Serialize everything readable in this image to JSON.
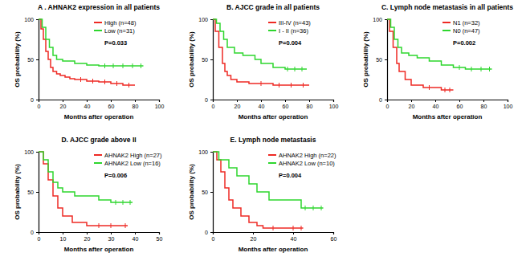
{
  "chart_data": [
    {
      "type": "step",
      "title": "A . AHNAK2 expression in all patients",
      "x_label": "Months after operation",
      "y_label": "OS probability (%)",
      "xlim": [
        0,
        100
      ],
      "xticks": [
        0,
        20,
        40,
        60,
        80,
        100
      ],
      "ylim": [
        0,
        100
      ],
      "yticks": [
        0,
        50,
        100
      ],
      "legend": "upper-right",
      "annotation": "P=0.033",
      "series": [
        {
          "name": "High (n=48)",
          "color": "#ee2a24",
          "x": [
            0,
            2,
            4,
            6,
            8,
            10,
            12,
            15,
            18,
            22,
            26,
            30,
            40,
            50,
            60,
            70,
            80
          ],
          "values": [
            100,
            88,
            75,
            60,
            50,
            40,
            35,
            32,
            30,
            28,
            26,
            25,
            23,
            22,
            20,
            18,
            18
          ],
          "censor_x": [
            35,
            45,
            55,
            65,
            75
          ],
          "censor_values": [
            25,
            23,
            22,
            20,
            18
          ]
        },
        {
          "name": "Low (n=31)",
          "color": "#2ed62e",
          "x": [
            0,
            3,
            6,
            9,
            12,
            15,
            20,
            30,
            40,
            50,
            87
          ],
          "values": [
            100,
            90,
            75,
            65,
            55,
            50,
            48,
            45,
            43,
            42,
            42
          ],
          "censor_x": [
            55,
            62,
            70,
            78,
            85
          ],
          "censor_values": [
            42,
            42,
            42,
            42,
            42
          ]
        }
      ]
    },
    {
      "type": "step",
      "title": "B. AJCC grade in all patients",
      "x_label": "Months after operation",
      "y_label": "OS probability (%)",
      "xlim": [
        0,
        100
      ],
      "xticks": [
        0,
        20,
        40,
        60,
        80,
        100
      ],
      "ylim": [
        0,
        100
      ],
      "yticks": [
        0,
        50,
        100
      ],
      "legend": "upper-right",
      "annotation": "P=0.004",
      "series": [
        {
          "name": "III-IV (n=43)",
          "color": "#ee2a24",
          "x": [
            0,
            2,
            5,
            8,
            10,
            12,
            15,
            20,
            30,
            50,
            80
          ],
          "values": [
            100,
            85,
            65,
            45,
            35,
            30,
            25,
            22,
            20,
            18,
            18
          ],
          "censor_x": [
            40,
            55,
            65,
            75
          ],
          "censor_values": [
            20,
            18,
            18,
            18
          ]
        },
        {
          "name": "I - II (n=36)",
          "color": "#2ed62e",
          "x": [
            0,
            3,
            6,
            9,
            12,
            18,
            25,
            35,
            40,
            50,
            60,
            78
          ],
          "values": [
            100,
            95,
            85,
            75,
            65,
            58,
            55,
            50,
            45,
            40,
            38,
            38
          ],
          "censor_x": [
            62,
            68,
            74
          ],
          "censor_values": [
            38,
            38,
            38
          ]
        }
      ]
    },
    {
      "type": "step",
      "title": "C. Lymph node metastasis in all patients",
      "x_label": "Months after operation",
      "y_label": "OS probability (%)",
      "xlim": [
        0,
        100
      ],
      "xticks": [
        0,
        20,
        40,
        60,
        80,
        100
      ],
      "ylim": [
        0,
        100
      ],
      "yticks": [
        0,
        50,
        100
      ],
      "legend": "upper-right",
      "annotation": "P=0.002",
      "series": [
        {
          "name": "N1 (n=32)",
          "color": "#ee2a24",
          "x": [
            0,
            2,
            5,
            8,
            10,
            15,
            20,
            30,
            45,
            55
          ],
          "values": [
            100,
            85,
            65,
            45,
            35,
            25,
            18,
            15,
            12,
            12
          ],
          "censor_x": [
            35,
            48,
            52
          ],
          "censor_values": [
            15,
            12,
            12
          ]
        },
        {
          "name": "N0 (n=47)",
          "color": "#2ed62e",
          "x": [
            0,
            3,
            6,
            9,
            12,
            18,
            25,
            35,
            45,
            55,
            65,
            87
          ],
          "values": [
            100,
            90,
            75,
            65,
            58,
            55,
            52,
            48,
            43,
            40,
            38,
            38
          ],
          "censor_x": [
            60,
            70,
            78,
            85
          ],
          "censor_values": [
            40,
            38,
            38,
            38
          ]
        }
      ]
    },
    {
      "type": "step",
      "title": "D. AJCC grade above II",
      "x_label": "Months after operation",
      "y_label": "OS probability (%)",
      "xlim": [
        0,
        50
      ],
      "xticks": [
        0,
        10,
        20,
        30,
        40,
        50
      ],
      "ylim": [
        0,
        100
      ],
      "yticks": [
        0,
        50,
        100
      ],
      "legend": "upper-right",
      "annotation": "P=0.006",
      "series": [
        {
          "name": "AHNAK2 High (n=27)",
          "color": "#ee2a24",
          "x": [
            0,
            2,
            4,
            6,
            8,
            10,
            14,
            20,
            37
          ],
          "values": [
            100,
            85,
            65,
            45,
            30,
            20,
            12,
            8,
            8
          ],
          "censor_x": [
            25,
            30,
            36
          ],
          "censor_values": [
            8,
            8,
            8
          ]
        },
        {
          "name": "AHNAK2 Low (n=16)",
          "color": "#2ed62e",
          "x": [
            0,
            2,
            4,
            6,
            8,
            10,
            15,
            25,
            30,
            39
          ],
          "values": [
            100,
            90,
            75,
            62,
            55,
            50,
            45,
            40,
            37,
            37
          ],
          "censor_x": [
            32,
            35,
            38
          ],
          "censor_values": [
            37,
            37,
            37
          ]
        }
      ]
    },
    {
      "type": "step",
      "title": "E. Lymph node metastasis",
      "x_label": "Months after operation",
      "y_label": "OS probability (%)",
      "xlim": [
        0,
        60
      ],
      "xticks": [
        0,
        20,
        40,
        60
      ],
      "ylim": [
        0,
        100
      ],
      "yticks": [
        0,
        50,
        100
      ],
      "legend": "upper-right",
      "annotation": "P=0.004",
      "series": [
        {
          "name": "AHNAK2 High (n=22)",
          "color": "#ee2a24",
          "x": [
            0,
            2,
            4,
            6,
            8,
            10,
            14,
            18,
            22,
            25,
            45
          ],
          "values": [
            100,
            90,
            75,
            55,
            40,
            30,
            20,
            12,
            8,
            5,
            5
          ],
          "censor_x": [
            30,
            40,
            44
          ],
          "censor_values": [
            5,
            5,
            5
          ]
        },
        {
          "name": "AHNAK2 Low (n=10)",
          "color": "#2ed62e",
          "x": [
            0,
            3,
            8,
            12,
            18,
            22,
            28,
            42,
            44,
            55
          ],
          "values": [
            100,
            90,
            80,
            70,
            60,
            50,
            40,
            40,
            30,
            30
          ],
          "censor_x": [
            46,
            50,
            54
          ],
          "censor_values": [
            30,
            30,
            30
          ]
        }
      ]
    }
  ]
}
